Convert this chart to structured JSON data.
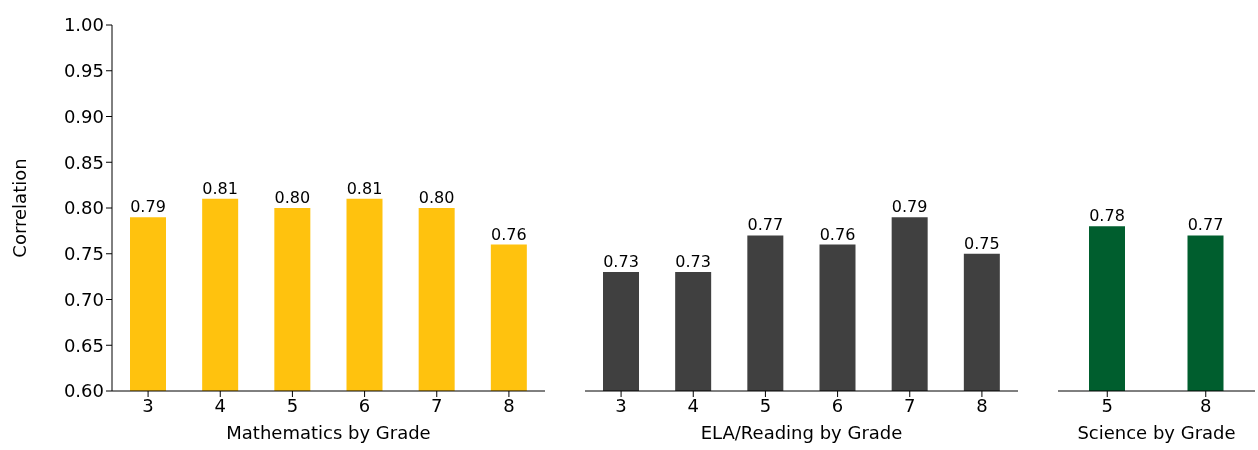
{
  "chart_data": [
    {
      "type": "bar",
      "categories": [
        "3",
        "4",
        "5",
        "6",
        "7",
        "8"
      ],
      "values": [
        0.79,
        0.81,
        0.8,
        0.81,
        0.8,
        0.76
      ],
      "value_labels": [
        "0.79",
        "0.81",
        "0.80",
        "0.81",
        "0.80",
        "0.76"
      ],
      "color": "#ffc20e",
      "xlabel": "Mathematics by Grade",
      "ylabel": "Correlation",
      "ylim": [
        0.6,
        1.0
      ],
      "yticks": [
        {
          "value": 0.6,
          "label": "0.60"
        },
        0.65,
        {
          "value": 0.7,
          "label": "0.70"
        },
        0.75,
        {
          "value": 0.8,
          "label": "0.80"
        },
        0.85,
        {
          "value": 0.9,
          "label": "0.90"
        },
        0.95,
        {
          "value": 1.0,
          "label": "1.00"
        }
      ],
      "grid": false,
      "legend": false
    },
    {
      "type": "bar",
      "categories": [
        "3",
        "4",
        "5",
        "6",
        "7",
        "8"
      ],
      "values": [
        0.73,
        0.73,
        0.77,
        0.76,
        0.79,
        0.75
      ],
      "value_labels": [
        "0.73",
        "0.73",
        "0.77",
        "0.76",
        "0.79",
        "0.75"
      ],
      "color": "#404040",
      "xlabel": "ELA/Reading by Grade",
      "ylim": [
        0.6,
        1.0
      ],
      "yticks": [
        0.6,
        0.65,
        0.7,
        0.75,
        0.8,
        0.85,
        0.9,
        0.95,
        1.0
      ],
      "tick_labels": "x",
      "grid": false,
      "legend": false
    },
    {
      "type": "bar",
      "categories": [
        "5",
        "8"
      ],
      "values": [
        0.78,
        0.77
      ],
      "value_labels": [
        "0.78",
        "0.77"
      ],
      "color": "#005e2e",
      "xlabel": "Science by Grade",
      "ylim": [
        0.6,
        1.0
      ],
      "yticks": [
        0.6,
        0.65,
        0.7,
        0.75,
        0.8,
        0.85,
        0.9,
        0.95,
        1.0
      ],
      "tick_labels": "x",
      "grid": false,
      "legend": false
    }
  ]
}
